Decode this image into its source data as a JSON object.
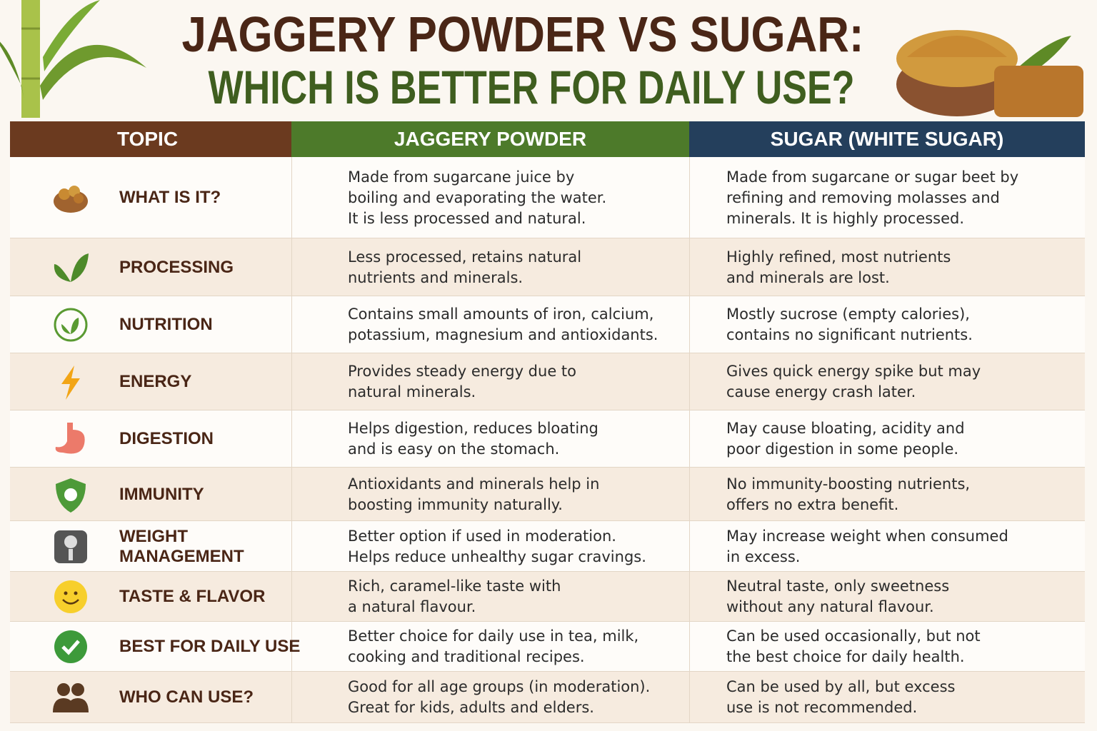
{
  "title": {
    "line1": "JAGGERY POWDER VS SUGAR:",
    "line2": "WHICH IS BETTER FOR DAILY USE?"
  },
  "table": {
    "headers": [
      "TOPIC",
      "JAGGERY POWDER",
      "SUGAR (WHITE SUGAR)"
    ],
    "rows": [
      {
        "topic": [
          "WHAT IS IT?"
        ],
        "jaggery": [
          "Made from sugarcane juice by",
          "boiling and evaporating the water.",
          "It is less processed and natural."
        ],
        "sugar": [
          "Made from sugarcane or sugar beet by",
          "refining and removing molasses and",
          "minerals. It is highly processed."
        ]
      },
      {
        "topic": [
          "PROCESSING"
        ],
        "jaggery": [
          "Less processed, retains natural",
          "nutrients and minerals."
        ],
        "sugar": [
          "Highly refined, most nutrients",
          "and minerals are lost."
        ]
      },
      {
        "topic": [
          "NUTRITION"
        ],
        "jaggery": [
          "Contains small amounts of iron, calcium,",
          "potassium, magnesium and antioxidants."
        ],
        "sugar": [
          "Mostly sucrose (empty calories),",
          "contains no significant nutrients."
        ]
      },
      {
        "topic": [
          "ENERGY"
        ],
        "jaggery": [
          "Provides steady energy due to",
          "natural minerals."
        ],
        "sugar": [
          "Gives quick energy spike but may",
          "cause energy crash later."
        ]
      },
      {
        "topic": [
          "DIGESTION"
        ],
        "jaggery": [
          "Helps digestion, reduces bloating",
          "and is easy on the stomach."
        ],
        "sugar": [
          "May cause bloating, acidity and",
          "poor digestion in some people."
        ]
      },
      {
        "topic": [
          "IMMUNITY"
        ],
        "jaggery": [
          "Antioxidants and minerals help in",
          "boosting immunity naturally."
        ],
        "sugar": [
          "No immunity-boosting nutrients,",
          "offers no extra benefit."
        ]
      },
      {
        "topic": [
          "WEIGHT",
          "MANAGEMENT"
        ],
        "jaggery": [
          "Better option if used in moderation.",
          "Helps reduce unhealthy sugar cravings."
        ],
        "sugar": [
          "May increase weight when consumed",
          "in excess."
        ]
      },
      {
        "topic": [
          "TASTE & FLAVOR"
        ],
        "jaggery": [
          "Rich, caramel-like taste with",
          "a natural flavour."
        ],
        "sugar": [
          "Neutral taste, only sweetness",
          "without any natural flavour."
        ]
      },
      {
        "topic": [
          "BEST FOR DAILY USE"
        ],
        "jaggery": [
          "Better choice for daily use in tea, milk,",
          "cooking and traditional recipes."
        ],
        "sugar": [
          "Can be used occasionally, but not",
          "the best choice for daily health."
        ]
      },
      {
        "topic": [
          "WHO CAN USE?"
        ],
        "jaggery": [
          "Good for all age groups (in moderation).",
          "Great for kids, adults and elders."
        ],
        "sugar": [
          "Can be used by all, but excess",
          "use is not recommended."
        ]
      }
    ]
  }
}
